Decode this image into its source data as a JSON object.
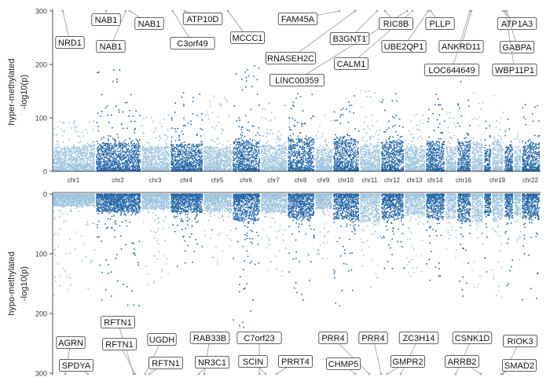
{
  "chart_data": [
    {
      "type": "scatter",
      "subtype": "manhattan",
      "panel": "top",
      "ylabel_lines": [
        "hyper-methylated",
        "-log10(p)"
      ],
      "ylim": [
        0,
        300
      ],
      "yticks": [
        0,
        100,
        200,
        300
      ],
      "grid": false,
      "point_colors": [
        "#9cc3dd",
        "#2265a6"
      ],
      "chromosome_labels": [
        "chr1",
        "chr2",
        "chr3",
        "chr4",
        "chr5",
        "chr6",
        "chr7",
        "chr8",
        "chr9",
        "chr10",
        "chr11",
        "chr12",
        "chr13",
        "chr14",
        "chr16",
        "chr19",
        "chr22"
      ],
      "chromosomes": [
        {
          "name": "chr1",
          "x": [
            67,
            120
          ],
          "base": 45,
          "peak": 95
        },
        {
          "name": "chr2",
          "x": [
            122,
            178
          ],
          "base": 52,
          "peak": 190
        },
        {
          "name": "chr3",
          "x": [
            180,
            215
          ],
          "base": 45,
          "peak": 110
        },
        {
          "name": "chr4",
          "x": [
            217,
            257
          ],
          "base": 50,
          "peak": 150
        },
        {
          "name": "chr5",
          "x": [
            259,
            294
          ],
          "base": 45,
          "peak": 150
        },
        {
          "name": "chr6",
          "x": [
            296,
            330
          ],
          "base": 58,
          "peak": 200
        },
        {
          "name": "chr7",
          "x": [
            332,
            364
          ],
          "base": 48,
          "peak": 130
        },
        {
          "name": "chr8",
          "x": [
            366,
            399
          ],
          "base": 60,
          "peak": 145
        },
        {
          "name": "chr9",
          "x": [
            401,
            422
          ],
          "base": 40,
          "peak": 110
        },
        {
          "name": "chr10",
          "x": [
            424,
            456
          ],
          "base": 58,
          "peak": 150
        },
        {
          "name": "chr11",
          "x": [
            458,
            483
          ],
          "base": 50,
          "peak": 155
        },
        {
          "name": "chr12",
          "x": [
            485,
            513
          ],
          "base": 55,
          "peak": 150
        },
        {
          "name": "chr13",
          "x": [
            515,
            540
          ],
          "base": 45,
          "peak": 110
        },
        {
          "name": "chr14",
          "x": [
            542,
            565
          ],
          "base": 55,
          "peak": 145
        },
        {
          "name": "chr15",
          "x": [
            567,
            580
          ],
          "base": 45,
          "peak": 110
        },
        {
          "name": "chr16",
          "x": [
            582,
            598
          ],
          "base": 55,
          "peak": 170
        },
        {
          "name": "chr17",
          "x": [
            600,
            614
          ],
          "base": 50,
          "peak": 150
        },
        {
          "name": "chr18",
          "x": [
            616,
            624
          ],
          "base": 40,
          "peak": 95
        },
        {
          "name": "chr19",
          "x": [
            626,
            640
          ],
          "base": 55,
          "peak": 150
        },
        {
          "name": "chr20",
          "x": [
            642,
            652
          ],
          "base": 45,
          "peak": 120
        },
        {
          "name": "chr21",
          "x": [
            654,
            662
          ],
          "base": 40,
          "peak": 90
        },
        {
          "name": "chr22",
          "x": [
            664,
            686
          ],
          "base": 50,
          "peak": 130
        }
      ],
      "annotations": [
        "NAB1",
        "NAB1",
        "NAB1",
        "ATP10D",
        "NRD1",
        "C3orf49",
        "MCCC1",
        "FAM45A",
        "B3GNT1",
        "RNASEH2C",
        "LINC00359",
        "CALM1",
        "RIC8B",
        "PLLP",
        "UBE2QP1",
        "ANKRD11",
        "LOC644649",
        "ATP1A3",
        "GABPA",
        "WBP11P1"
      ]
    },
    {
      "type": "scatter",
      "subtype": "manhattan",
      "panel": "bottom",
      "ylabel_lines": [
        "hypo-methylated",
        "-log10(p)"
      ],
      "ylim": [
        0,
        300
      ],
      "yticks": [
        0,
        100,
        200,
        300
      ],
      "y_inverted": true,
      "grid": false,
      "point_colors": [
        "#9cc3dd",
        "#2265a6"
      ],
      "chromosomes": [
        {
          "name": "chr1",
          "x": [
            67,
            120
          ],
          "base": 20,
          "peak": 180
        },
        {
          "name": "chr2",
          "x": [
            122,
            178
          ],
          "base": 30,
          "peak": 215
        },
        {
          "name": "chr3",
          "x": [
            180,
            215
          ],
          "base": 25,
          "peak": 160
        },
        {
          "name": "chr4",
          "x": [
            217,
            257
          ],
          "base": 30,
          "peak": 130
        },
        {
          "name": "chr5",
          "x": [
            259,
            294
          ],
          "base": 28,
          "peak": 125
        },
        {
          "name": "chr6",
          "x": [
            296,
            330
          ],
          "base": 45,
          "peak": 240
        },
        {
          "name": "chr7",
          "x": [
            332,
            364
          ],
          "base": 30,
          "peak": 140
        },
        {
          "name": "chr8",
          "x": [
            366,
            399
          ],
          "base": 40,
          "peak": 185
        },
        {
          "name": "chr9",
          "x": [
            401,
            422
          ],
          "base": 25,
          "peak": 140
        },
        {
          "name": "chr10",
          "x": [
            424,
            456
          ],
          "base": 42,
          "peak": 190
        },
        {
          "name": "chr11",
          "x": [
            458,
            483
          ],
          "base": 45,
          "peak": 160
        },
        {
          "name": "chr12",
          "x": [
            485,
            513
          ],
          "base": 40,
          "peak": 130
        },
        {
          "name": "chr13",
          "x": [
            515,
            540
          ],
          "base": 35,
          "peak": 140
        },
        {
          "name": "chr14",
          "x": [
            542,
            565
          ],
          "base": 40,
          "peak": 150
        },
        {
          "name": "chr15",
          "x": [
            567,
            580
          ],
          "base": 40,
          "peak": 160
        },
        {
          "name": "chr16",
          "x": [
            582,
            598
          ],
          "base": 45,
          "peak": 175
        },
        {
          "name": "chr17",
          "x": [
            600,
            614
          ],
          "base": 45,
          "peak": 160
        },
        {
          "name": "chr18",
          "x": [
            616,
            624
          ],
          "base": 35,
          "peak": 140
        },
        {
          "name": "chr19",
          "x": [
            626,
            640
          ],
          "base": 45,
          "peak": 200
        },
        {
          "name": "chr20",
          "x": [
            642,
            652
          ],
          "base": 40,
          "peak": 170
        },
        {
          "name": "chr21",
          "x": [
            654,
            662
          ],
          "base": 35,
          "peak": 140
        },
        {
          "name": "chr22",
          "x": [
            664,
            686
          ],
          "base": 40,
          "peak": 180
        }
      ],
      "annotations": [
        "AGRN",
        "SPDYA",
        "RFTN1",
        "RFTN1",
        "UGDH",
        "RFTN1",
        "RAB33B",
        "NR3C1",
        "C7orf23",
        "SCIN",
        "PRRT4",
        "PRR4",
        "PRR4",
        "CHMP5",
        "ZC3H14",
        "GMPR2",
        "CSNK1D",
        "ARRB2",
        "RIOK3",
        "SMAD2"
      ]
    }
  ]
}
